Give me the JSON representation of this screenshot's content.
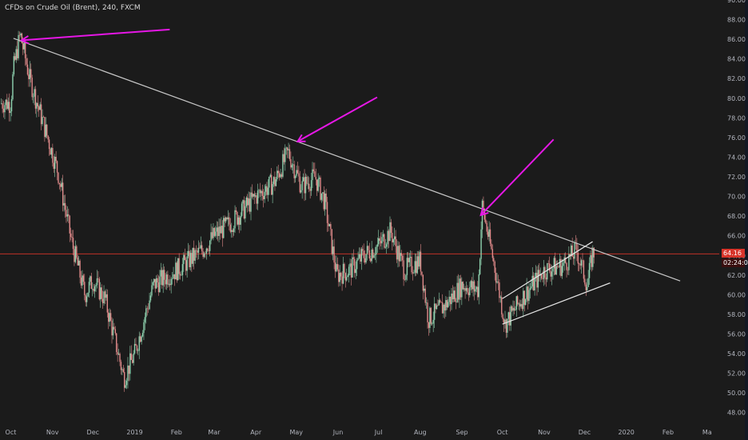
{
  "symbol_title": "CFDs on Crude Oil (Brent), 240, FXCM",
  "colors": {
    "background": "#1b1b1b",
    "axis_text": "#b2b5be",
    "candle_up": "#8fd3b0",
    "candle_down": "#e08a8a",
    "trendline": "#c8c8c8",
    "channel": "#e6e6e6",
    "arrow": "#e617e6",
    "price_line": "#d8342a",
    "timer_badge": "#3a0f0f"
  },
  "price_badge": {
    "last_price": "64.16",
    "countdown": "02:24:0"
  },
  "chart_data": {
    "type": "candlestick",
    "x": [
      "2018-10-01",
      "2018-10-03",
      "2018-10-08",
      "2018-10-15",
      "2018-10-25",
      "2018-11-05",
      "2018-11-15",
      "2018-11-25",
      "2018-12-01",
      "2018-12-10",
      "2018-12-18",
      "2018-12-24",
      "2019-01-01",
      "2019-01-15",
      "2019-02-01",
      "2019-02-20",
      "2019-03-01",
      "2019-03-15",
      "2019-04-01",
      "2019-04-15",
      "2019-04-25",
      "2019-05-05",
      "2019-05-15",
      "2019-05-22",
      "2019-05-31",
      "2019-06-10",
      "2019-06-20",
      "2019-07-01",
      "2019-07-10",
      "2019-07-20",
      "2019-08-01",
      "2019-08-07",
      "2019-08-20",
      "2019-09-01",
      "2019-09-13",
      "2019-09-16",
      "2019-09-25",
      "2019-10-03",
      "2019-10-15",
      "2019-11-01",
      "2019-11-15",
      "2019-11-25",
      "2019-12-03",
      "2019-12-07"
    ],
    "close": [
      79.5,
      83.0,
      86.5,
      82.0,
      77.5,
      72.5,
      65.5,
      60.0,
      61.5,
      59.5,
      55.0,
      51.5,
      54.0,
      61.0,
      62.5,
      64.5,
      66.0,
      67.5,
      70.0,
      71.5,
      74.5,
      71.0,
      72.0,
      69.5,
      62.0,
      62.5,
      64.0,
      65.0,
      66.5,
      62.5,
      63.5,
      57.5,
      59.0,
      61.0,
      60.5,
      69.0,
      63.0,
      57.0,
      59.5,
      62.5,
      63.0,
      64.5,
      61.0,
      64.2
    ],
    "ylim": [
      47,
      90
    ],
    "yticks": [
      "48.00",
      "50.00",
      "52.00",
      "54.00",
      "56.00",
      "58.00",
      "60.00",
      "62.00",
      "64.00",
      "66.00",
      "68.00",
      "70.00",
      "72.00",
      "74.00",
      "76.00",
      "78.00",
      "80.00",
      "82.00",
      "84.00",
      "86.00",
      "88.00",
      "90.00"
    ],
    "xticks": [
      "Oct",
      "Nov",
      "Dec",
      "2019",
      "Feb",
      "Mar",
      "Apr",
      "May",
      "Jun",
      "Jul",
      "Aug",
      "Sep",
      "Oct",
      "Nov",
      "Dec",
      "2020",
      "Feb",
      "Ma"
    ],
    "last_price": 64.16,
    "trendline": {
      "from": [
        "2018-10-03",
        86.1
      ],
      "to": [
        "2020-02-10",
        61.4
      ]
    },
    "channel": [
      {
        "from": [
          "2019-10-01",
          59.6
        ],
        "to": [
          "2019-12-07",
          65.4
        ]
      },
      {
        "from": [
          "2019-10-01",
          57.0
        ],
        "to": [
          "2019-12-20",
          61.2
        ]
      }
    ],
    "arrows": [
      {
        "tail": [
          "2019-01-27",
          87.0
        ],
        "head": [
          "2018-10-09",
          85.9
        ]
      },
      {
        "tail": [
          "2019-06-30",
          80.1
        ],
        "head": [
          "2019-05-02",
          75.6
        ]
      },
      {
        "tail": [
          "2019-11-08",
          75.8
        ],
        "head": [
          "2019-09-15",
          68.1
        ]
      }
    ]
  }
}
